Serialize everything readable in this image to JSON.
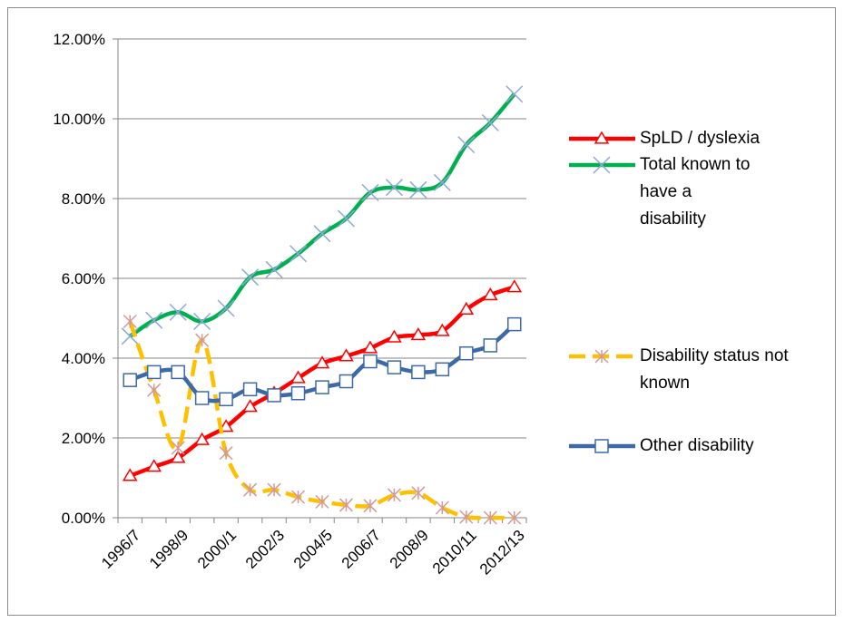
{
  "chart_data": {
    "type": "line",
    "categories": [
      "1996/7",
      null,
      "1998/9",
      null,
      "2000/1",
      null,
      "2002/3",
      null,
      "2004/5",
      null,
      "2006/7",
      null,
      "2008/9",
      null,
      "2010/11",
      null,
      "2012/13"
    ],
    "ylim": [
      0,
      12
    ],
    "yticks": [
      {
        "value": 0,
        "label": "0.00%"
      },
      {
        "value": 2,
        "label": "2.00%"
      },
      {
        "value": 4,
        "label": "4.00%"
      },
      {
        "value": 6,
        "label": "6.00%"
      },
      {
        "value": 8,
        "label": "8.00%"
      },
      {
        "value": 10,
        "label": "10.00%"
      },
      {
        "value": 12,
        "label": "12.00%"
      }
    ],
    "grid": true,
    "legend": "right",
    "series": [
      {
        "name": "SpLD / dyslexia",
        "color": "#ff0000",
        "marker": "triangle",
        "marker_color": "#ff0000",
        "dash": false,
        "values": [
          1.05,
          1.28,
          1.5,
          1.95,
          2.28,
          2.78,
          3.12,
          3.5,
          3.87,
          4.05,
          4.25,
          4.52,
          4.58,
          4.68,
          5.22,
          5.58,
          5.78
        ]
      },
      {
        "name": "Total known to have a disability",
        "color": "#00b050",
        "marker": "x",
        "marker_color": "#8ea8d6",
        "dash": false,
        "values": [
          4.55,
          4.95,
          5.15,
          4.92,
          5.25,
          6.03,
          6.22,
          6.62,
          7.12,
          7.5,
          8.15,
          8.28,
          8.22,
          8.4,
          9.35,
          9.9,
          10.62
        ]
      },
      {
        "name": "Disability status not known",
        "color": "#ffc000",
        "marker": "asterisk",
        "marker_color": "#d09a9a",
        "dash": true,
        "values": [
          4.92,
          3.2,
          1.75,
          4.45,
          1.62,
          0.7,
          0.7,
          0.52,
          0.4,
          0.32,
          0.3,
          0.57,
          0.62,
          0.25,
          0.02,
          0.0,
          0.0
        ]
      },
      {
        "name": "Other disability",
        "color": "#3d6aa6",
        "marker": "square",
        "marker_color": "#3d6aa6",
        "dash": false,
        "values": [
          3.45,
          3.65,
          3.65,
          3.0,
          2.97,
          3.22,
          3.07,
          3.12,
          3.27,
          3.42,
          3.92,
          3.77,
          3.65,
          3.72,
          4.12,
          4.32,
          4.85
        ]
      }
    ]
  }
}
